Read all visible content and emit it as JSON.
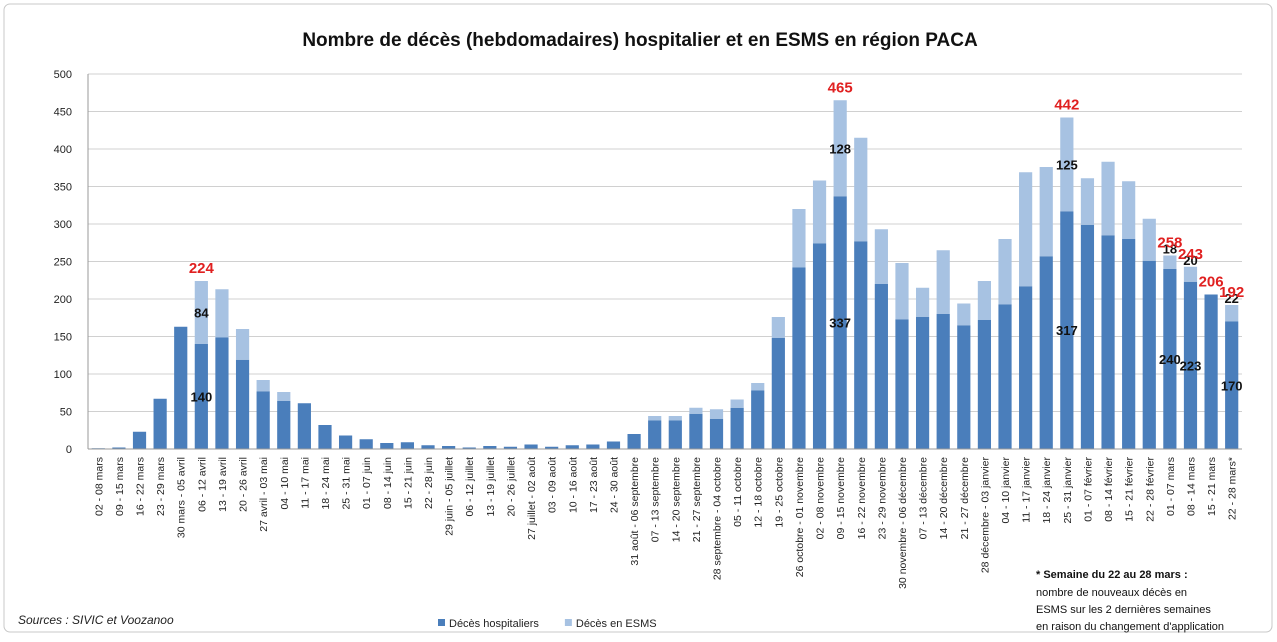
{
  "chart_data": {
    "type": "stacked-bar",
    "title": "Nombre de décès (hebdomadaires) hospitalier et en ESMS en région PACA",
    "source": "Sources : SIVIC et Voozanoo",
    "note": [
      "* Semaine du 22 au 28 mars :",
      "nombre de  nouveaux décès en",
      "ESMS sur les 2 dernières semaines",
      "en raison du changement d'application"
    ],
    "categories": [
      "02 - 08 mars",
      "09 - 15 mars",
      "16 - 22 mars",
      "23 - 29 mars",
      "30 mars - 05 avril",
      "06 - 12 avril",
      "13 - 19 avril",
      "20 - 26 avril",
      "27 avril - 03 mai",
      "04 - 10 mai",
      "11 - 17 mai",
      "18 - 24 mai",
      "25 - 31 mai",
      "01 - 07 juin",
      "08 - 14 juin",
      "15 - 21 juin",
      "22 - 28 juin",
      "29 juin - 05 juillet",
      "06 - 12 juillet",
      "13 - 19 juillet",
      "20 - 26 juillet",
      "27 juillet - 02 août",
      "03 - 09 août",
      "10 - 16 août",
      "17 - 23 août",
      "24 - 30 août",
      "31 août - 06 septembre",
      "07 - 13 septembre",
      "14 - 20 septembre",
      "21 - 27 septembre",
      "28 septembre - 04 octobre",
      "05 - 11 octobre",
      "12 - 18 octobre",
      "19 - 25 octobre",
      "26 octobre - 01 novembre",
      "02 - 08 novembre",
      "09 - 15 novembre",
      "16 - 22 novembre",
      "23 - 29 novembre",
      "30 novembre - 06 décembre",
      "07 - 13 décembre",
      "14 - 20 décembre",
      "21 - 27 décembre",
      "28 décembre - 03 janvier",
      "04 - 10 janvier",
      "11 - 17 janvier",
      "18 - 24 janvier",
      "25 - 31 janvier",
      "01 - 07 février",
      "08 - 14 février",
      "15 - 21 février",
      "22 - 28 février",
      "01 - 07 mars",
      "08 - 14 mars",
      "15 - 21 mars",
      "22 - 28 mars*"
    ],
    "series": [
      {
        "name": "Décès hospitaliers",
        "color": "#4a7ebb",
        "values": [
          1,
          2,
          23,
          67,
          163,
          140,
          149,
          119,
          77,
          64,
          61,
          32,
          18,
          13,
          8,
          9,
          5,
          4,
          2,
          4,
          3,
          6,
          3,
          5,
          6,
          10,
          20,
          38,
          38,
          47,
          40,
          55,
          78,
          148,
          242,
          274,
          337,
          277,
          220,
          173,
          176,
          180,
          165,
          172,
          193,
          217,
          257,
          317,
          299,
          285,
          280,
          251,
          240,
          223,
          206,
          170
        ],
        "value_labels": [
          null,
          null,
          null,
          null,
          null,
          "140",
          null,
          null,
          null,
          null,
          null,
          null,
          null,
          null,
          null,
          null,
          null,
          null,
          null,
          null,
          null,
          null,
          null,
          null,
          null,
          null,
          null,
          null,
          null,
          null,
          null,
          null,
          null,
          null,
          null,
          null,
          "337",
          null,
          null,
          null,
          null,
          null,
          null,
          null,
          null,
          null,
          null,
          "317",
          null,
          null,
          null,
          null,
          "240",
          "223",
          null,
          "170"
        ]
      },
      {
        "name": "Décès en ESMS",
        "color": "#a7c2e2",
        "values": [
          0,
          0,
          0,
          0,
          0,
          84,
          64,
          41,
          15,
          12,
          0,
          0,
          0,
          0,
          0,
          0,
          0,
          0,
          0,
          0,
          0,
          0,
          0,
          0,
          0,
          0,
          0,
          6,
          6,
          8,
          13,
          11,
          10,
          28,
          78,
          84,
          128,
          138,
          73,
          75,
          39,
          85,
          29,
          52,
          87,
          152,
          119,
          125,
          62,
          98,
          77,
          56,
          18,
          20,
          0,
          22
        ],
        "value_labels": [
          null,
          null,
          null,
          null,
          null,
          "84",
          null,
          null,
          null,
          null,
          null,
          null,
          null,
          null,
          null,
          null,
          null,
          null,
          null,
          null,
          null,
          null,
          null,
          null,
          null,
          null,
          null,
          null,
          null,
          null,
          null,
          null,
          null,
          null,
          null,
          null,
          "128",
          null,
          null,
          null,
          null,
          null,
          null,
          null,
          null,
          null,
          null,
          "125",
          null,
          null,
          null,
          null,
          "18",
          "20",
          null,
          "22"
        ]
      }
    ],
    "total_labels": [
      null,
      null,
      null,
      null,
      null,
      "224",
      null,
      null,
      null,
      null,
      null,
      null,
      null,
      null,
      null,
      null,
      null,
      null,
      null,
      null,
      null,
      null,
      null,
      null,
      null,
      null,
      null,
      null,
      null,
      null,
      null,
      null,
      null,
      null,
      null,
      null,
      "465",
      null,
      null,
      null,
      null,
      null,
      null,
      null,
      null,
      null,
      null,
      "442",
      null,
      null,
      null,
      null,
      "258",
      "243",
      "206",
      "192"
    ],
    "total_label_color": "#e02020",
    "ylim": [
      0,
      500
    ],
    "yticks": [
      0,
      50,
      100,
      150,
      200,
      250,
      300,
      350,
      400,
      450,
      500
    ],
    "grid": true
  }
}
